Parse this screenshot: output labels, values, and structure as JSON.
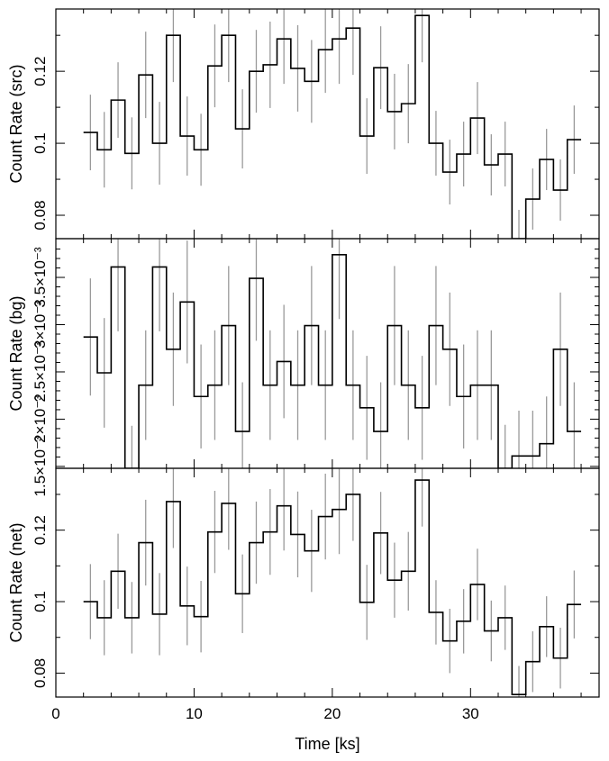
{
  "chart_data": {
    "type": "line",
    "style": "step",
    "shared_x": {
      "label": "Time [ks]",
      "range": [
        0,
        39.3
      ],
      "ticks": [
        0,
        10,
        20,
        30
      ],
      "bin_width_ks": 1,
      "bin_centers": [
        2.5,
        3.5,
        4.5,
        5.5,
        6.5,
        7.5,
        8.5,
        9.5,
        10.5,
        11.5,
        12.5,
        13.5,
        14.5,
        15.5,
        16.5,
        17.5,
        18.5,
        19.5,
        20.5,
        21.5,
        22.5,
        23.5,
        24.5,
        25.5,
        26.5,
        27.5,
        28.5,
        29.5,
        30.5,
        31.5,
        32.5,
        33.5,
        34.5,
        35.5,
        36.5,
        37.5
      ]
    },
    "panels": [
      {
        "ylabel": "Count Rate (src)",
        "ylim": [
          0.0735,
          0.1373
        ],
        "tick_labels": [
          {
            "v": 0.08,
            "t": "0.08"
          },
          {
            "v": 0.1,
            "t": "0.1"
          },
          {
            "v": 0.12,
            "t": "0.12"
          }
        ],
        "minor_ticks": [
          0.09,
          0.11,
          0.13
        ],
        "values": [
          0.103,
          0.0982,
          0.112,
          0.0972,
          0.119,
          0.1,
          0.13,
          0.102,
          0.0982,
          0.1215,
          0.13,
          0.104,
          0.12,
          0.1218,
          0.129,
          0.1208,
          0.1172,
          0.126,
          0.129,
          0.132,
          0.102,
          0.121,
          0.1088,
          0.111,
          0.1355,
          0.1,
          0.092,
          0.097,
          0.107,
          0.094,
          0.097,
          0.0735,
          0.0845,
          0.0955,
          0.087,
          0.101
        ],
        "errors": [
          0.0105,
          0.0105,
          0.0105,
          0.01,
          0.012,
          0.0115,
          0.013,
          0.011,
          0.01,
          0.0115,
          0.013,
          0.011,
          0.0115,
          0.012,
          0.0125,
          0.012,
          0.0115,
          0.012,
          0.0125,
          0.013,
          0.0105,
          0.0115,
          0.0105,
          0.011,
          0.013,
          0.009,
          0.009,
          0.009,
          0.01,
          0.0085,
          0.009,
          0.008,
          0.0085,
          0.0085,
          0.0085,
          0.0095
        ]
      },
      {
        "ylabel": "Count Rate (bg)",
        "ylim": [
          0.00148,
          0.00391
        ],
        "tick_labels": [
          {
            "v": 0.0015,
            "t": "1.5×10⁻³"
          },
          {
            "v": 0.002,
            "t": "2×10⁻³"
          },
          {
            "v": 0.0025,
            "t": "2.5×10⁻³"
          },
          {
            "v": 0.003,
            "t": "3×10⁻³"
          },
          {
            "v": 0.0035,
            "t": "3.5×10⁻³"
          }
        ],
        "minor_ticks": [
          0.0016,
          0.0017,
          0.0018,
          0.0019,
          0.0021,
          0.0022,
          0.0023,
          0.0024,
          0.0026,
          0.0027,
          0.0028,
          0.0029,
          0.0031,
          0.0032,
          0.0033,
          0.0034,
          0.0036,
          0.0037,
          0.0038
        ],
        "values": [
          0.00287,
          0.00249,
          0.00361,
          0.00148,
          0.00236,
          0.00361,
          0.00274,
          0.00324,
          0.00224,
          0.00236,
          0.00299,
          0.00187,
          0.00349,
          0.00236,
          0.00261,
          0.00236,
          0.00299,
          0.00236,
          0.00374,
          0.00236,
          0.00212,
          0.00187,
          0.00299,
          0.00236,
          0.00212,
          0.00299,
          0.00274,
          0.00224,
          0.00236,
          0.00236,
          0.00148,
          0.00161,
          0.00161,
          0.00174,
          0.00274,
          0.00187
        ],
        "errors": [
          0.00062,
          0.00058,
          0.00068,
          0.00045,
          0.00058,
          0.00068,
          0.0006,
          0.00065,
          0.00055,
          0.00058,
          0.00063,
          0.00052,
          0.00066,
          0.00058,
          0.0006,
          0.00058,
          0.00063,
          0.00058,
          0.00068,
          0.00058,
          0.00055,
          0.00052,
          0.00063,
          0.00058,
          0.00055,
          0.00063,
          0.0006,
          0.00055,
          0.00058,
          0.00058,
          0.00046,
          0.00048,
          0.00048,
          0.0005,
          0.0006,
          0.00052
        ]
      },
      {
        "ylabel": "Count Rate (net)",
        "ylim": [
          0.0733,
          0.1373
        ],
        "tick_labels": [
          {
            "v": 0.08,
            "t": "0.08"
          },
          {
            "v": 0.1,
            "t": "0.1"
          },
          {
            "v": 0.12,
            "t": "0.12"
          }
        ],
        "minor_ticks": [
          0.09,
          0.11,
          0.13
        ],
        "values": [
          0.1,
          0.0955,
          0.1085,
          0.0955,
          0.1165,
          0.0965,
          0.128,
          0.0988,
          0.0958,
          0.1195,
          0.1275,
          0.1022,
          0.1165,
          0.1195,
          0.1268,
          0.1188,
          0.1142,
          0.1238,
          0.1258,
          0.13,
          0.0998,
          0.1192,
          0.106,
          0.1085,
          0.134,
          0.097,
          0.089,
          0.0945,
          0.1048,
          0.0918,
          0.0955,
          0.074,
          0.0832,
          0.093,
          0.0842,
          0.0992
        ],
        "errors": [
          0.0105,
          0.0105,
          0.0105,
          0.01,
          0.012,
          0.0115,
          0.013,
          0.011,
          0.01,
          0.0115,
          0.013,
          0.011,
          0.0115,
          0.012,
          0.0125,
          0.012,
          0.0115,
          0.012,
          0.0125,
          0.013,
          0.0105,
          0.0115,
          0.0105,
          0.011,
          0.013,
          0.009,
          0.009,
          0.009,
          0.01,
          0.0085,
          0.009,
          0.008,
          0.0085,
          0.0085,
          0.0085,
          0.0095
        ]
      }
    ]
  }
}
